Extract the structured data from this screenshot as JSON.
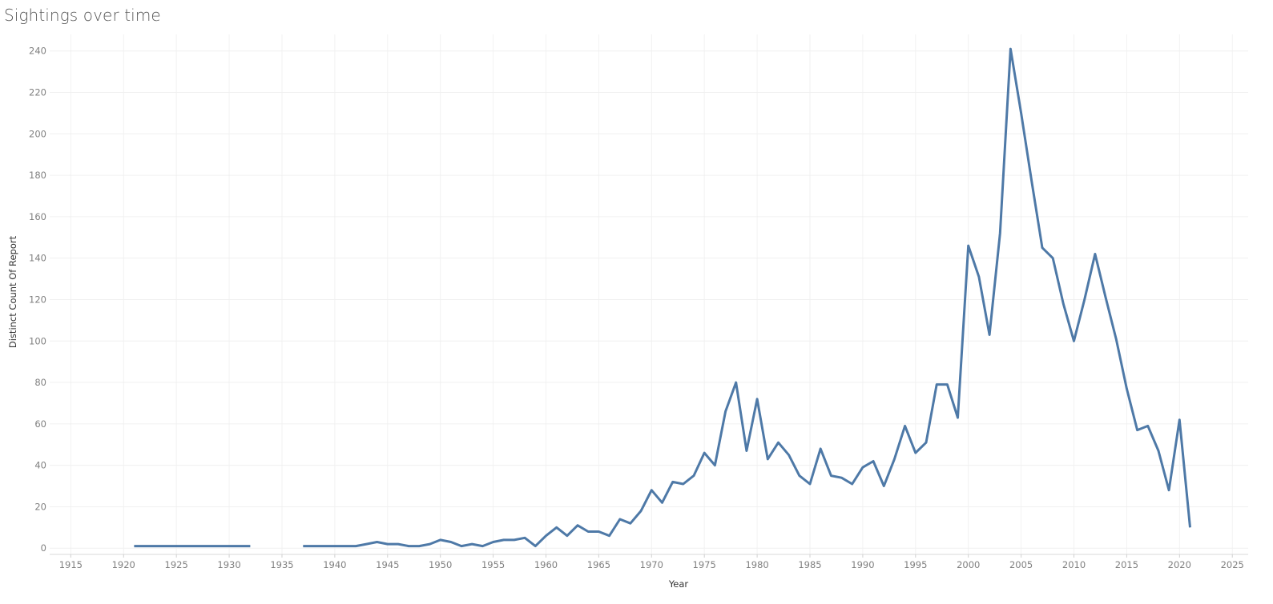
{
  "header": {
    "title": "Sightings over time"
  },
  "chart_data": {
    "type": "line",
    "title": "Sightings over time",
    "xlabel": "Year",
    "ylabel": "Distinct Count Of Report",
    "xlim": [
      1913,
      2026.5
    ],
    "ylim": [
      -3,
      248
    ],
    "x_ticks": [
      1915,
      1920,
      1925,
      1930,
      1935,
      1940,
      1945,
      1950,
      1955,
      1960,
      1965,
      1970,
      1975,
      1980,
      1985,
      1990,
      1995,
      2000,
      2005,
      2010,
      2015,
      2020,
      2025
    ],
    "y_ticks": [
      0,
      20,
      40,
      60,
      80,
      100,
      120,
      140,
      160,
      180,
      200,
      220,
      240
    ],
    "grid": true,
    "line_color": "#4e79a7",
    "series": [
      {
        "segments": [
          [
            [
              1921,
              1
            ],
            [
              1922,
              1
            ],
            [
              1923,
              1
            ],
            [
              1924,
              1
            ],
            [
              1925,
              1
            ],
            [
              1926,
              1
            ],
            [
              1927,
              1
            ],
            [
              1928,
              1
            ],
            [
              1929,
              1
            ],
            [
              1930,
              1
            ],
            [
              1931,
              1
            ],
            [
              1932,
              1
            ]
          ],
          [
            [
              1937,
              1
            ],
            [
              1938,
              1
            ],
            [
              1939,
              1
            ],
            [
              1940,
              1
            ],
            [
              1941,
              1
            ],
            [
              1942,
              1
            ],
            [
              1943,
              2
            ],
            [
              1944,
              3
            ],
            [
              1945,
              2
            ],
            [
              1946,
              2
            ],
            [
              1947,
              1
            ],
            [
              1948,
              1
            ],
            [
              1949,
              2
            ],
            [
              1950,
              4
            ],
            [
              1951,
              3
            ],
            [
              1952,
              1
            ],
            [
              1953,
              2
            ],
            [
              1954,
              1
            ],
            [
              1955,
              3
            ],
            [
              1956,
              4
            ],
            [
              1957,
              4
            ],
            [
              1958,
              5
            ],
            [
              1959,
              1
            ],
            [
              1960,
              6
            ],
            [
              1961,
              10
            ],
            [
              1962,
              6
            ],
            [
              1963,
              11
            ],
            [
              1964,
              8
            ],
            [
              1965,
              8
            ],
            [
              1966,
              6
            ],
            [
              1967,
              14
            ],
            [
              1968,
              12
            ],
            [
              1969,
              18
            ],
            [
              1970,
              28
            ],
            [
              1971,
              22
            ],
            [
              1972,
              32
            ],
            [
              1973,
              31
            ],
            [
              1974,
              35
            ],
            [
              1975,
              46
            ],
            [
              1976,
              40
            ],
            [
              1977,
              66
            ],
            [
              1978,
              80
            ],
            [
              1979,
              47
            ],
            [
              1980,
              72
            ],
            [
              1981,
              43
            ],
            [
              1982,
              51
            ],
            [
              1983,
              45
            ],
            [
              1984,
              35
            ],
            [
              1985,
              31
            ],
            [
              1986,
              48
            ],
            [
              1987,
              35
            ],
            [
              1988,
              34
            ],
            [
              1989,
              31
            ],
            [
              1990,
              39
            ],
            [
              1991,
              42
            ],
            [
              1992,
              30
            ],
            [
              1993,
              43
            ],
            [
              1994,
              59
            ],
            [
              1995,
              46
            ],
            [
              1996,
              51
            ],
            [
              1997,
              79
            ],
            [
              1998,
              79
            ],
            [
              1999,
              63
            ],
            [
              2000,
              146
            ],
            [
              2001,
              131
            ],
            [
              2002,
              103
            ],
            [
              2003,
              152
            ],
            [
              2004,
              241
            ],
            [
              2005,
              210
            ],
            [
              2006,
              177
            ],
            [
              2007,
              145
            ],
            [
              2008,
              140
            ],
            [
              2009,
              118
            ],
            [
              2010,
              100
            ],
            [
              2011,
              120
            ],
            [
              2012,
              142
            ],
            [
              2013,
              121
            ],
            [
              2014,
              101
            ],
            [
              2015,
              77
            ],
            [
              2016,
              57
            ],
            [
              2017,
              59
            ],
            [
              2018,
              47
            ],
            [
              2019,
              28
            ],
            [
              2020,
              62
            ],
            [
              2021,
              10
            ]
          ]
        ]
      }
    ]
  }
}
